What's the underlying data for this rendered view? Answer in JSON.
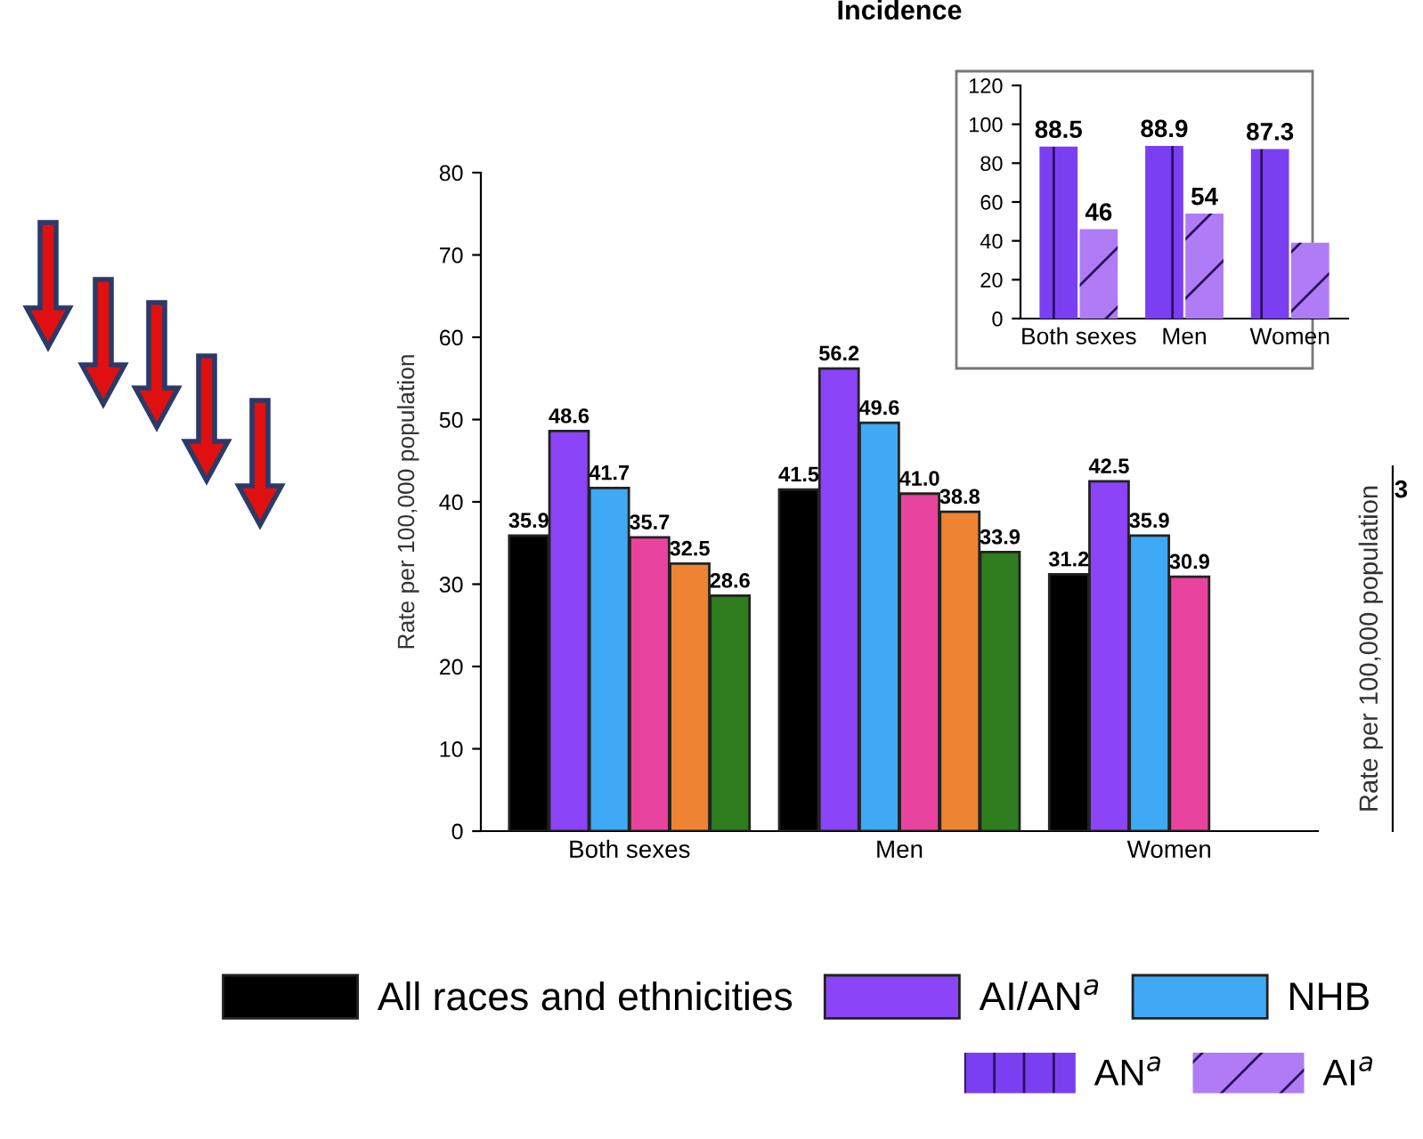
{
  "chart_data": [
    {
      "type": "bar",
      "title": "Incidence",
      "ylabel": "Rate per 100,000 population",
      "categories": [
        "Both sexes",
        "Men",
        "Women"
      ],
      "series": [
        {
          "name": "All races and ethnicities",
          "color": "#000000",
          "values": [
            35.9,
            41.5,
            31.2
          ],
          "value_labels": [
            "35.9",
            "41.5",
            "31.2"
          ]
        },
        {
          "name": "AI/AN$^{a}$",
          "color": "#8b44f7",
          "values": [
            48.6,
            56.2,
            42.5
          ],
          "value_labels": [
            "48.6",
            "56.2",
            "42.5"
          ]
        },
        {
          "name": "NHB",
          "color": "#3fa9f5",
          "values": [
            41.7,
            49.6,
            35.9
          ],
          "value_labels": [
            "41.7",
            "49.6",
            "35.9"
          ]
        },
        {
          "color": "#e8449f",
          "values": [
            35.7,
            41.0,
            30.9
          ],
          "value_labels": [
            "35.7",
            "41.0",
            "30.9"
          ]
        },
        {
          "color": "#ee8433",
          "values": [
            32.5,
            38.8,
            null
          ],
          "value_labels": [
            "32.5",
            "38.8",
            null
          ]
        },
        {
          "color": "#2e7d1e",
          "values": [
            28.6,
            33.9,
            null
          ],
          "value_labels": [
            "28.6",
            "33.9",
            null
          ]
        }
      ],
      "ylim": [
        0,
        80
      ],
      "yticks": [
        0,
        10,
        20,
        30,
        40,
        50,
        60,
        70,
        80
      ],
      "legend": "bottom",
      "grid": false
    },
    {
      "type": "bar",
      "categories": [
        "Both sexes",
        "Men",
        "Women"
      ],
      "series": [
        {
          "name": "AN$^{a}$",
          "color": "#7b3ff2",
          "values": [
            88.5,
            88.9,
            87.3
          ],
          "value_labels": [
            "88.5",
            "88.9",
            "87.3"
          ]
        },
        {
          "name": "AI$^{a}$",
          "color": "#b07cf5",
          "values": [
            46,
            54,
            39
          ],
          "value_labels": [
            "46",
            "54",
            null
          ]
        }
      ],
      "ylim": [
        0,
        120
      ],
      "yticks": [
        0,
        20,
        40,
        60,
        80,
        100,
        120
      ],
      "legend": "bottom right",
      "grid": false
    },
    {
      "type": "other",
      "ylabel": "Rate per 100,000 population",
      "annotations": [
        "3"
      ]
    }
  ]
}
